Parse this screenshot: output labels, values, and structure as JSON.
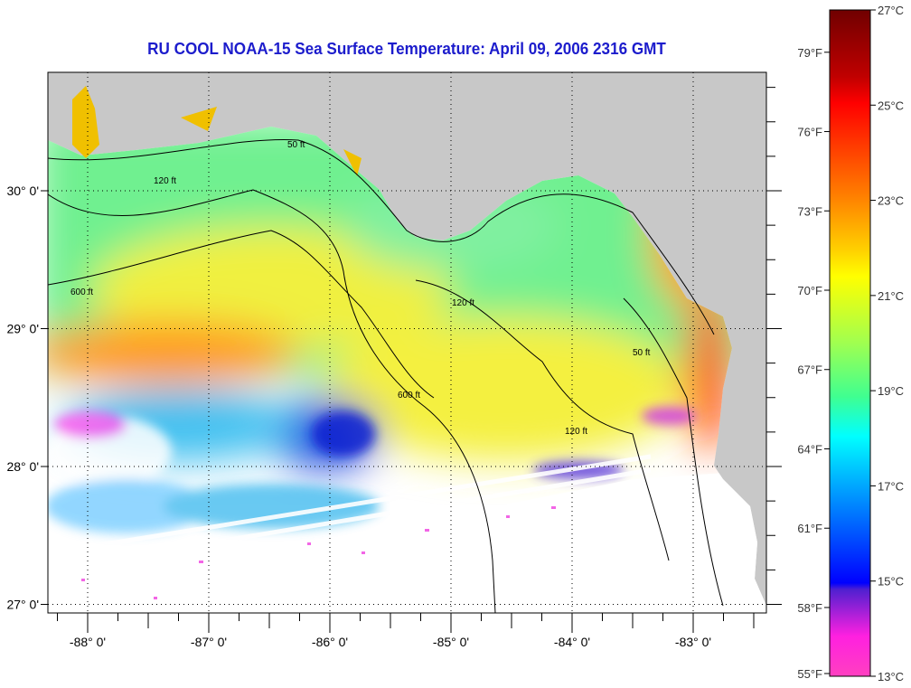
{
  "title": "RU COOL  NOAA-15  Sea Surface Temperature:  April 09, 2006 2316 GMT",
  "map": {
    "lat_ticks": [
      {
        "value": 30,
        "label": "30° 0'"
      },
      {
        "value": 29,
        "label": "29° 0'"
      },
      {
        "value": 28,
        "label": "28° 0'"
      },
      {
        "value": 27,
        "label": "27° 0'"
      }
    ],
    "lon_ticks": [
      {
        "value": -88,
        "label": "-88° 0'"
      },
      {
        "value": -87,
        "label": "-87° 0'"
      },
      {
        "value": -86,
        "label": "-86° 0'"
      },
      {
        "value": -85,
        "label": "-85° 0'"
      },
      {
        "value": -84,
        "label": "-84° 0'"
      },
      {
        "value": -83,
        "label": "-83° 0'"
      }
    ],
    "contour_labels": [
      "50 ft",
      "120 ft",
      "600 ft"
    ],
    "land_color": "#c8c8c8",
    "cloud_color": "#ffffff"
  },
  "colorbar": {
    "fahrenheit": [
      "79°F",
      "76°F",
      "73°F",
      "70°F",
      "67°F",
      "64°F",
      "61°F",
      "58°F",
      "55°F"
    ],
    "fahrenheit_values": [
      79,
      76,
      73,
      70,
      67,
      64,
      61,
      58,
      55
    ],
    "celsius": [
      "27°C",
      "25°C",
      "23°C",
      "21°C",
      "19°C",
      "17°C",
      "15°C",
      "13°C"
    ],
    "celsius_values": [
      27,
      25,
      23,
      21,
      19,
      17,
      15,
      13
    ],
    "range_c": [
      13,
      27
    ]
  }
}
